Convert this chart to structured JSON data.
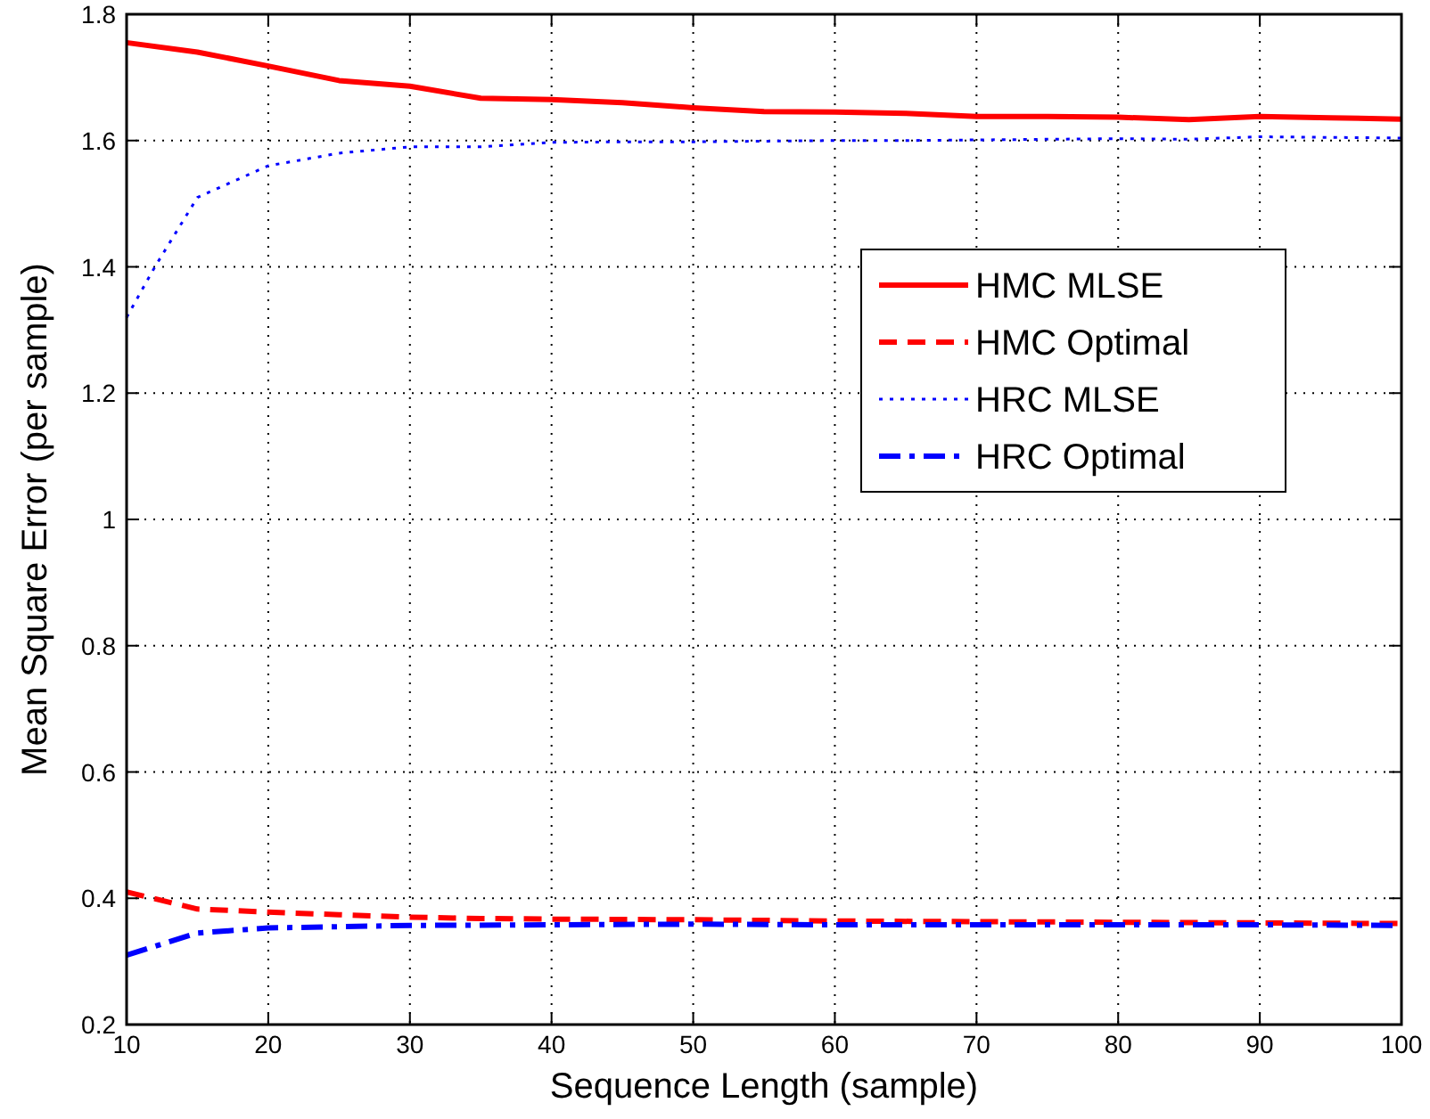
{
  "chart_data": {
    "type": "line",
    "xlabel": "Sequence Length (sample)",
    "ylabel": "Mean Square Error (per sample)",
    "xlim": [
      10,
      100
    ],
    "xticks": [
      10,
      20,
      30,
      40,
      50,
      60,
      70,
      80,
      90,
      100
    ],
    "ylim": [
      0.2,
      1.8
    ],
    "yticks": [
      0.2,
      0.4,
      0.6,
      0.8,
      1,
      1.2,
      1.4,
      1.6,
      1.8
    ],
    "grid": true,
    "legend": "right",
    "series": [
      {
        "name": "HMC MLSE",
        "color": "#ff0000",
        "line_style": "solid",
        "x": [
          10,
          15,
          20,
          25,
          30,
          35,
          40,
          45,
          50,
          55,
          60,
          65,
          70,
          75,
          80,
          85,
          90,
          95,
          100
        ],
        "values": [
          1.755,
          1.74,
          1.718,
          1.695,
          1.686,
          1.667,
          1.665,
          1.66,
          1.652,
          1.646,
          1.645,
          1.643,
          1.638,
          1.638,
          1.637,
          1.633,
          1.638,
          1.636,
          1.634
        ]
      },
      {
        "name": "HMC Optimal",
        "color": "#ff0000",
        "line_style": "dashed",
        "x": [
          10,
          15,
          20,
          25,
          30,
          35,
          40,
          50,
          60,
          70,
          80,
          90,
          100
        ],
        "values": [
          0.41,
          0.383,
          0.378,
          0.374,
          0.37,
          0.368,
          0.367,
          0.366,
          0.364,
          0.363,
          0.362,
          0.361,
          0.36
        ]
      },
      {
        "name": "HRC MLSE",
        "color": "#0000ff",
        "line_style": "dotted",
        "x": [
          10,
          12,
          15,
          20,
          25,
          30,
          35,
          40,
          45,
          50,
          55,
          60,
          65,
          70,
          75,
          80,
          85,
          90,
          95,
          100
        ],
        "values": [
          1.32,
          1.4,
          1.51,
          1.56,
          1.58,
          1.59,
          1.59,
          1.597,
          1.598,
          1.598,
          1.599,
          1.6,
          1.6,
          1.601,
          1.602,
          1.603,
          1.602,
          1.606,
          1.605,
          1.604
        ]
      },
      {
        "name": "HRC Optimal",
        "color": "#0000ff",
        "line_style": "dashdot",
        "x": [
          10,
          15,
          20,
          25,
          30,
          40,
          50,
          60,
          70,
          80,
          90,
          100
        ],
        "values": [
          0.31,
          0.345,
          0.353,
          0.355,
          0.357,
          0.358,
          0.359,
          0.358,
          0.358,
          0.358,
          0.358,
          0.357
        ]
      }
    ]
  }
}
